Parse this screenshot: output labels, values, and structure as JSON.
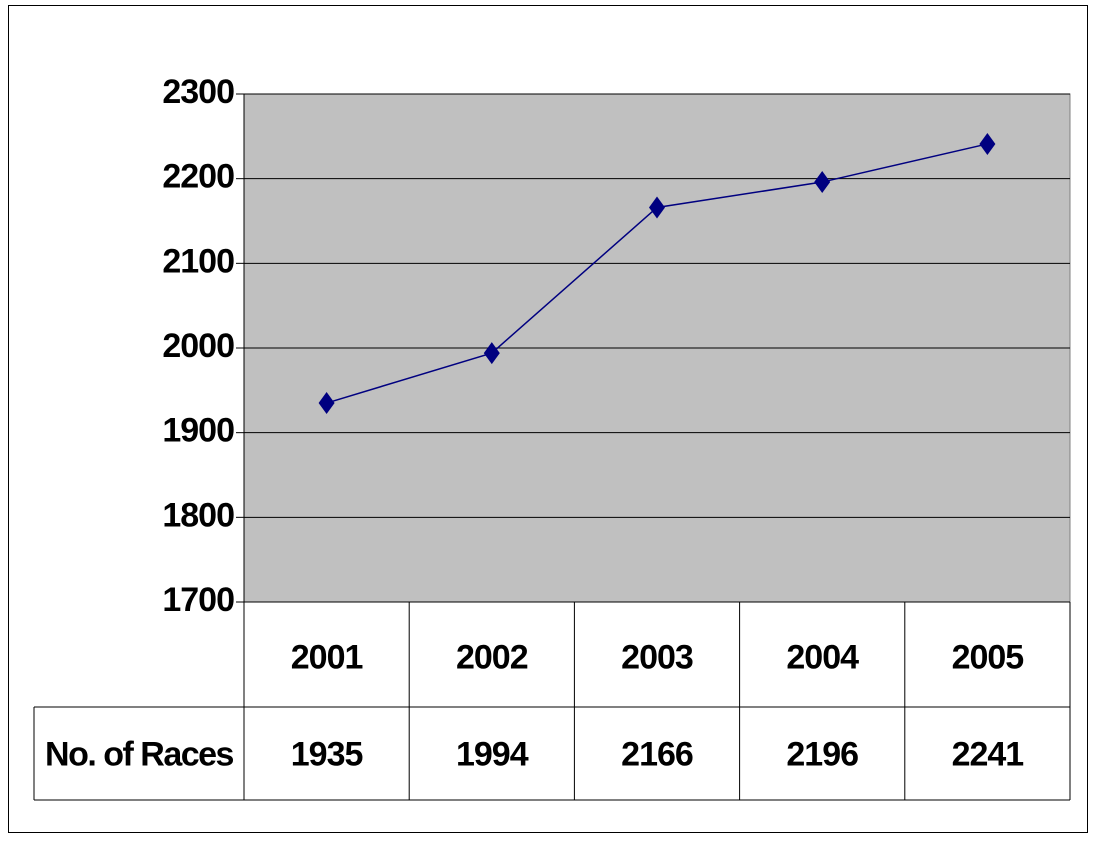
{
  "chart_data": {
    "type": "line",
    "categories": [
      "2001",
      "2002",
      "2003",
      "2004",
      "2005"
    ],
    "series": [
      {
        "name": "No. of Races",
        "color": "#000080",
        "values": [
          1935,
          1994,
          2166,
          2196,
          2241
        ]
      }
    ],
    "ylim": [
      1700,
      2300
    ],
    "yticks": [
      1700,
      1800,
      1900,
      2000,
      2100,
      2200,
      2300
    ],
    "grid": true
  }
}
